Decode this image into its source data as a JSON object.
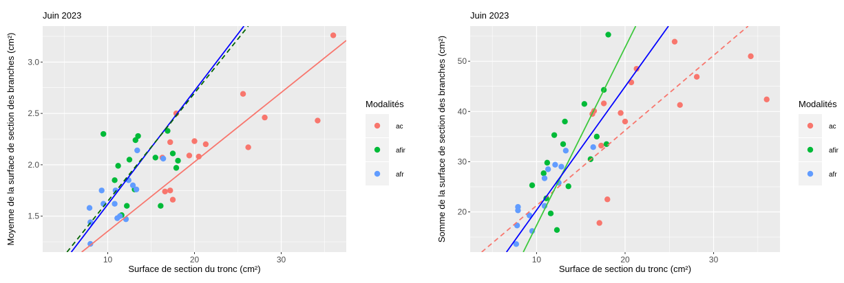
{
  "chart_data": [
    {
      "type": "scatter",
      "title": "Juin 2023",
      "xlabel": "Surface de section du tronc (cm²)",
      "ylabel": "Moyenne de la surface de section des branches (cm²)",
      "xlim": [
        2.5,
        37.5
      ],
      "ylim": [
        1.15,
        3.35
      ],
      "xticks": [
        10,
        20,
        30
      ],
      "yticks": [
        1.5,
        2.0,
        2.5,
        3.0
      ],
      "ytick_labels": [
        "1.5",
        "2.0",
        "2.5",
        "3.0"
      ],
      "grid": true,
      "legend_title": "Modalités",
      "series": [
        {
          "name": "ac",
          "color": "#F8766D",
          "points": [
            [
              16.6,
              1.74
            ],
            [
              17.2,
              1.75
            ],
            [
              17.5,
              1.66
            ],
            [
              16.3,
              2.07
            ],
            [
              17.2,
              2.22
            ],
            [
              17.9,
              2.5
            ],
            [
              19.4,
              2.09
            ],
            [
              20.0,
              2.23
            ],
            [
              20.5,
              2.08
            ],
            [
              21.3,
              2.2
            ],
            [
              25.6,
              2.69
            ],
            [
              26.2,
              2.17
            ],
            [
              28.1,
              2.46
            ],
            [
              34.2,
              2.43
            ],
            [
              36.0,
              3.26
            ]
          ]
        },
        {
          "name": "afir",
          "color": "#00BA38",
          "points": [
            [
              9.5,
              2.3
            ],
            [
              10.8,
              1.85
            ],
            [
              11.2,
              1.99
            ],
            [
              11.6,
              1.51
            ],
            [
              12.2,
              1.6
            ],
            [
              12.5,
              2.05
            ],
            [
              13.1,
              1.76
            ],
            [
              13.2,
              2.24
            ],
            [
              13.5,
              2.28
            ],
            [
              15.5,
              2.07
            ],
            [
              16.1,
              1.6
            ],
            [
              16.9,
              2.33
            ],
            [
              17.5,
              2.11
            ],
            [
              17.9,
              1.97
            ],
            [
              18.1,
              2.04
            ]
          ]
        },
        {
          "name": "afr",
          "color": "#619CFF",
          "points": [
            [
              7.9,
              1.58
            ],
            [
              8.0,
              1.44
            ],
            [
              8.0,
              1.23
            ],
            [
              9.3,
              1.75
            ],
            [
              9.5,
              1.62
            ],
            [
              10.8,
              1.62
            ],
            [
              10.9,
              1.75
            ],
            [
              11.1,
              1.48
            ],
            [
              11.4,
              1.5
            ],
            [
              12.1,
              1.47
            ],
            [
              12.4,
              1.85
            ],
            [
              12.9,
              1.8
            ],
            [
              13.3,
              1.76
            ],
            [
              13.4,
              2.14
            ],
            [
              16.4,
              2.06
            ]
          ]
        }
      ],
      "fit_lines": [
        {
          "color": "#F8766D",
          "dash": false,
          "from": [
            7.0,
            1.15
          ],
          "to": [
            37.5,
            3.21
          ]
        },
        {
          "color": "#0000FF",
          "dash": false,
          "from": [
            5.8,
            1.15
          ],
          "to": [
            25.7,
            3.35
          ]
        },
        {
          "color": "#006400",
          "dash": true,
          "from": [
            5.3,
            1.15
          ],
          "to": [
            26.2,
            3.35
          ]
        }
      ]
    },
    {
      "type": "scatter",
      "title": "Juin 2023",
      "xlabel": "Surface de section du tronc (cm²)",
      "ylabel": "Somme de la surface de section des branches (cm²)",
      "xlim": [
        2.5,
        37.5
      ],
      "ylim": [
        12,
        57
      ],
      "xticks": [
        10,
        20,
        30
      ],
      "yticks": [
        20,
        30,
        40,
        50
      ],
      "ytick_labels": [
        "20",
        "30",
        "40",
        "50"
      ],
      "grid": true,
      "legend_title": "Modalités",
      "series": [
        {
          "name": "ac",
          "color": "#F8766D",
          "points": [
            [
              17.1,
              17.8
            ],
            [
              18.0,
              22.5
            ],
            [
              17.3,
              33.2
            ],
            [
              16.3,
              39.5
            ],
            [
              16.5,
              40.1
            ],
            [
              17.6,
              41.6
            ],
            [
              19.5,
              39.7
            ],
            [
              20.0,
              38.0
            ],
            [
              20.7,
              45.8
            ],
            [
              21.3,
              48.5
            ],
            [
              25.6,
              53.9
            ],
            [
              26.2,
              41.3
            ],
            [
              28.1,
              46.9
            ],
            [
              34.2,
              51.0
            ],
            [
              36.0,
              42.4
            ]
          ]
        },
        {
          "name": "afir",
          "color": "#00BA38",
          "points": [
            [
              9.5,
              25.3
            ],
            [
              10.8,
              27.7
            ],
            [
              11.1,
              22.7
            ],
            [
              11.2,
              29.8
            ],
            [
              11.6,
              19.7
            ],
            [
              12.0,
              35.3
            ],
            [
              12.3,
              16.4
            ],
            [
              13.0,
              33.5
            ],
            [
              13.2,
              38.0
            ],
            [
              13.6,
              25.1
            ],
            [
              15.4,
              41.5
            ],
            [
              16.1,
              30.5
            ],
            [
              16.8,
              35.0
            ],
            [
              17.6,
              44.3
            ],
            [
              17.9,
              33.5
            ],
            [
              18.1,
              55.3
            ]
          ]
        },
        {
          "name": "afr",
          "color": "#619CFF",
          "points": [
            [
              7.7,
              13.6
            ],
            [
              7.8,
              17.3
            ],
            [
              7.9,
              20.3
            ],
            [
              7.9,
              21.0
            ],
            [
              9.2,
              19.3
            ],
            [
              9.5,
              16.2
            ],
            [
              10.9,
              21.2
            ],
            [
              10.9,
              26.7
            ],
            [
              11.3,
              28.5
            ],
            [
              12.1,
              29.4
            ],
            [
              12.5,
              25.8
            ],
            [
              12.8,
              29.0
            ],
            [
              13.3,
              32.2
            ],
            [
              16.4,
              32.9
            ]
          ]
        }
      ],
      "fit_lines": [
        {
          "color": "#F8766D",
          "dash": true,
          "from": [
            3.8,
            12.0
          ],
          "to": [
            33.9,
            57.0
          ]
        },
        {
          "color": "#00FF00",
          "dash": false,
          "stroke": "#3CC83C",
          "from": [
            8.5,
            12.0
          ],
          "to": [
            21.2,
            57.0
          ]
        },
        {
          "color": "#0000FF",
          "dash": false,
          "from": [
            6.6,
            12.0
          ],
          "to": [
            24.9,
            57.0
          ]
        }
      ]
    }
  ]
}
